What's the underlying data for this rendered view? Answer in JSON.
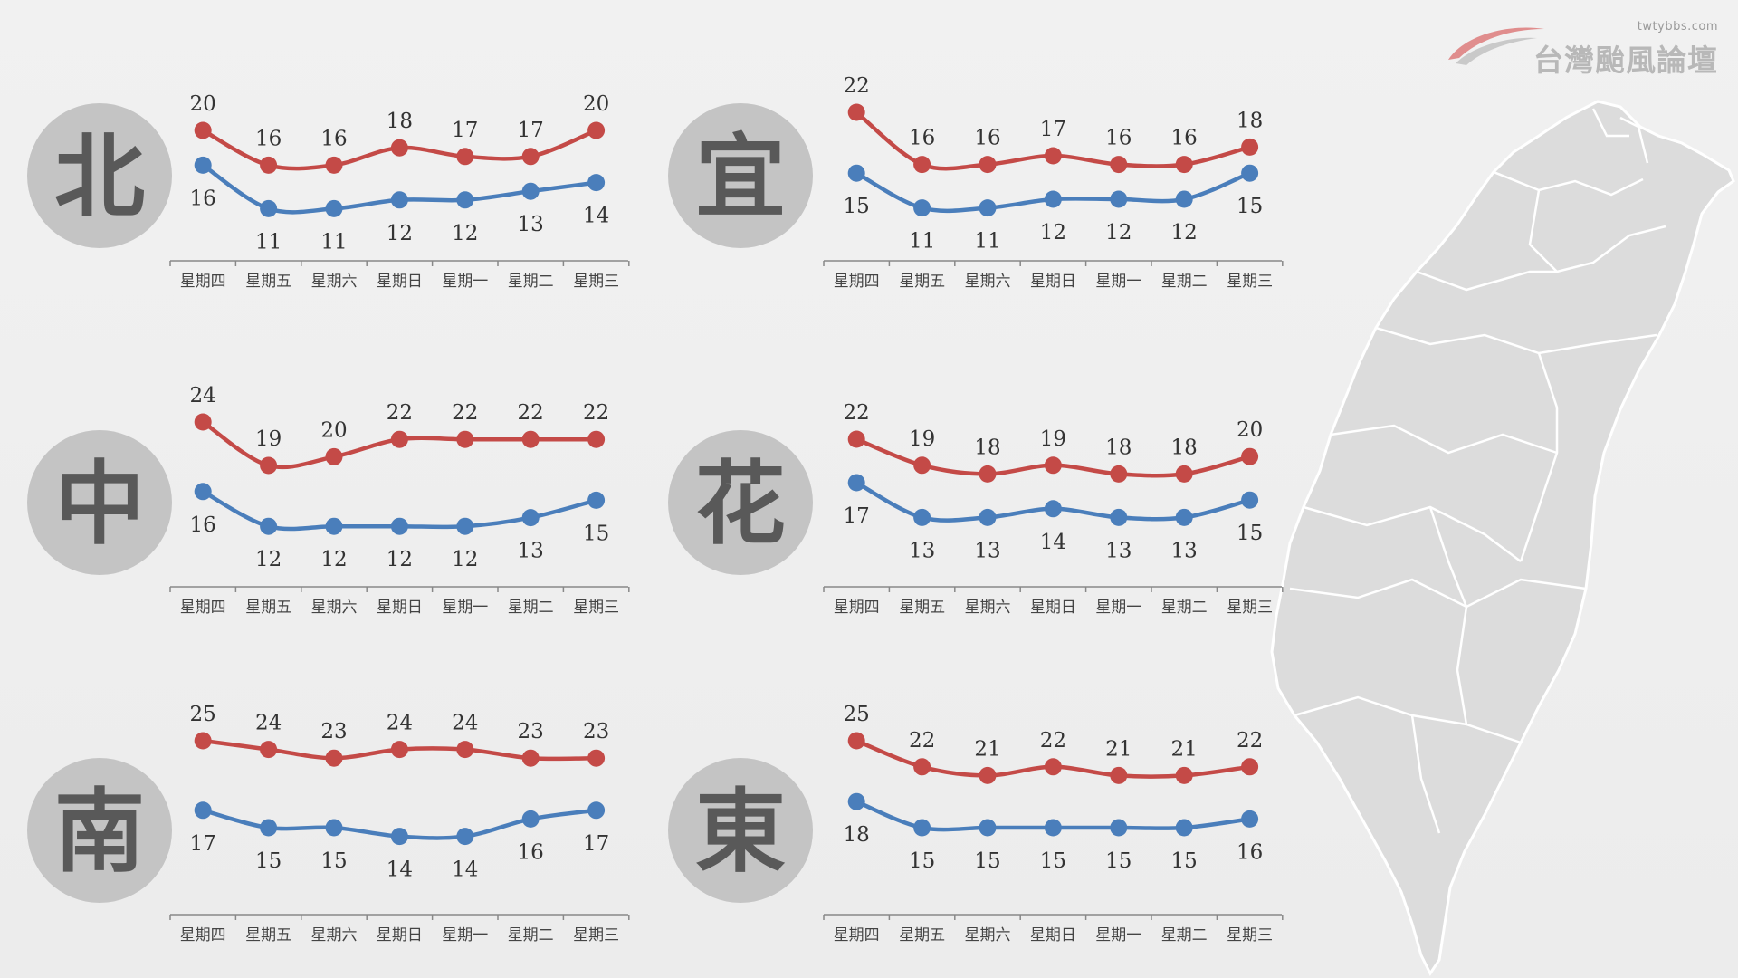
{
  "header": {
    "site_url": "twtybbs.com",
    "site_name": "台灣颱風論壇"
  },
  "colors": {
    "high": "#c44a47",
    "low": "#4a7ebb",
    "badge": "#c4c4c4",
    "map": "#dcdcdc"
  },
  "chart_data": [
    {
      "type": "line",
      "region": "北",
      "categories": [
        "星期四",
        "星期五",
        "星期六",
        "星期日",
        "星期一",
        "星期二",
        "星期三"
      ],
      "series": [
        {
          "values": [
            20,
            16,
            16,
            18,
            17,
            17,
            20
          ]
        },
        {
          "values": [
            16,
            11,
            11,
            12,
            12,
            13,
            14
          ]
        }
      ]
    },
    {
      "type": "line",
      "region": "宜",
      "categories": [
        "星期四",
        "星期五",
        "星期六",
        "星期日",
        "星期一",
        "星期二",
        "星期三"
      ],
      "series": [
        {
          "values": [
            22,
            16,
            16,
            17,
            16,
            16,
            18
          ]
        },
        {
          "values": [
            15,
            11,
            11,
            12,
            12,
            12,
            15
          ]
        }
      ]
    },
    {
      "type": "line",
      "region": "中",
      "categories": [
        "星期四",
        "星期五",
        "星期六",
        "星期日",
        "星期一",
        "星期二",
        "星期三"
      ],
      "series": [
        {
          "values": [
            24,
            19,
            20,
            22,
            22,
            22,
            22
          ]
        },
        {
          "values": [
            16,
            12,
            12,
            12,
            12,
            13,
            15
          ]
        }
      ]
    },
    {
      "type": "line",
      "region": "花",
      "categories": [
        "星期四",
        "星期五",
        "星期六",
        "星期日",
        "星期一",
        "星期二",
        "星期三"
      ],
      "series": [
        {
          "values": [
            22,
            19,
            18,
            19,
            18,
            18,
            20
          ]
        },
        {
          "values": [
            17,
            13,
            13,
            14,
            13,
            13,
            15
          ]
        }
      ]
    },
    {
      "type": "line",
      "region": "南",
      "categories": [
        "星期四",
        "星期五",
        "星期六",
        "星期日",
        "星期一",
        "星期二",
        "星期三"
      ],
      "series": [
        {
          "values": [
            25,
            24,
            23,
            24,
            24,
            23,
            23
          ]
        },
        {
          "values": [
            17,
            15,
            15,
            14,
            14,
            16,
            17
          ]
        }
      ]
    },
    {
      "type": "line",
      "region": "東",
      "categories": [
        "星期四",
        "星期五",
        "星期六",
        "星期日",
        "星期一",
        "星期二",
        "星期三"
      ],
      "series": [
        {
          "values": [
            25,
            22,
            21,
            22,
            21,
            21,
            22
          ]
        },
        {
          "values": [
            18,
            15,
            15,
            15,
            15,
            15,
            16
          ]
        }
      ]
    }
  ]
}
